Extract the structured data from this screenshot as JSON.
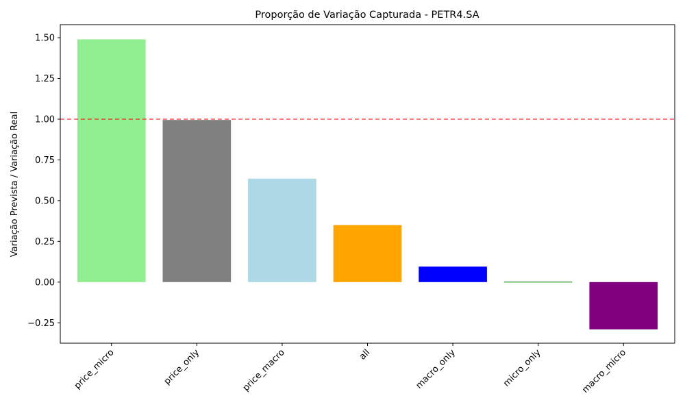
{
  "chart_data": {
    "type": "bar",
    "title": "Proporção de Variação Capturada - PETR4.SA",
    "xlabel": "",
    "ylabel": "Variação Prevista / Variação Real",
    "categories": [
      "price_micro",
      "price_only",
      "price_macro",
      "all",
      "macro_only",
      "micro_only",
      "macro_micro"
    ],
    "values": [
      1.49,
      0.995,
      0.635,
      0.35,
      0.095,
      -0.002,
      -0.29
    ],
    "colors": [
      "#90ee90",
      "#808080",
      "#add8e6",
      "#ffa500",
      "#0000ff",
      "#008000",
      "#800080"
    ],
    "ylim": [
      -0.375,
      1.58
    ],
    "yticks": [
      -0.25,
      0.0,
      0.25,
      0.5,
      0.75,
      1.0,
      1.25,
      1.5
    ],
    "ytick_labels": [
      "−0.25",
      "0.00",
      "0.25",
      "0.50",
      "0.75",
      "1.00",
      "1.25",
      "1.50"
    ],
    "reference_line": {
      "value": 1.0,
      "color": "#ff0000",
      "style": "dashed"
    },
    "legend": "none",
    "grid": false
  }
}
